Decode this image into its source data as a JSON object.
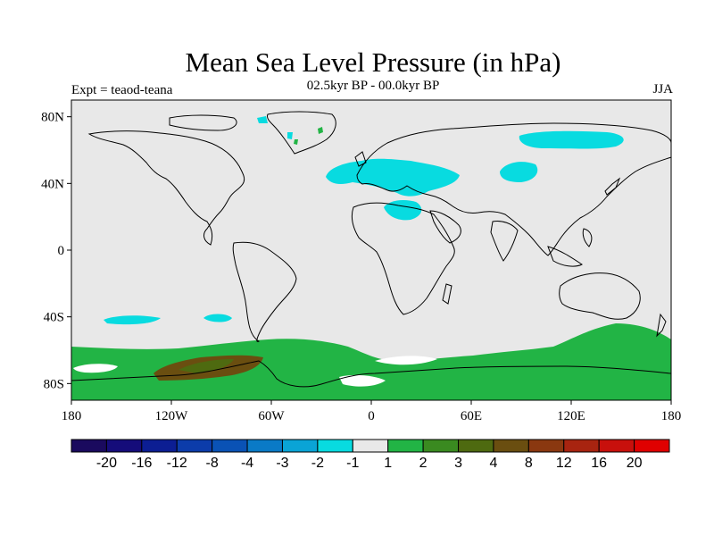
{
  "header": {
    "title": "Mean Sea Level Pressure (in hPa)",
    "subtitle": "02.5kyr BP - 00.0kyr BP",
    "expt": "Expt = teaod-teana",
    "season": "JJA"
  },
  "axes": {
    "lat_labels": [
      {
        "lat": 80,
        "text": "80N"
      },
      {
        "lat": 40,
        "text": "40N"
      },
      {
        "lat": 0,
        "text": "0"
      },
      {
        "lat": -40,
        "text": "40S"
      },
      {
        "lat": -80,
        "text": "80S"
      }
    ],
    "lon_labels": [
      {
        "lon": -180,
        "text": "180"
      },
      {
        "lon": -120,
        "text": "120W"
      },
      {
        "lon": -60,
        "text": "60W"
      },
      {
        "lon": 0,
        "text": "0"
      },
      {
        "lon": 60,
        "text": "60E"
      },
      {
        "lon": 120,
        "text": "120E"
      },
      {
        "lon": 180,
        "text": "180"
      }
    ]
  },
  "colorbar": {
    "colors": [
      "#1a0a5e",
      "#150c7a",
      "#0c1e93",
      "#0c3caa",
      "#0a52b5",
      "#0a7ac6",
      "#0aa4d6",
      "#08dbe0",
      "#e8e8e8",
      "#22b445",
      "#3a8a20",
      "#4e6a10",
      "#6a4e10",
      "#8a3810",
      "#a82410",
      "#c8100c",
      "#e00000"
    ],
    "labels": [
      "-20",
      "-16",
      "-12",
      "-8",
      "-4",
      "-3",
      "-2",
      "-1",
      "1",
      "2",
      "3",
      "4",
      "8",
      "12",
      "16",
      "20"
    ]
  },
  "colors": {
    "background": "#e8e8e8",
    "cyan": "#08dbe0",
    "green": "#22b445",
    "dark_olive": "#6a4e10",
    "olive": "#4e6a10",
    "white": "#ffffff"
  }
}
